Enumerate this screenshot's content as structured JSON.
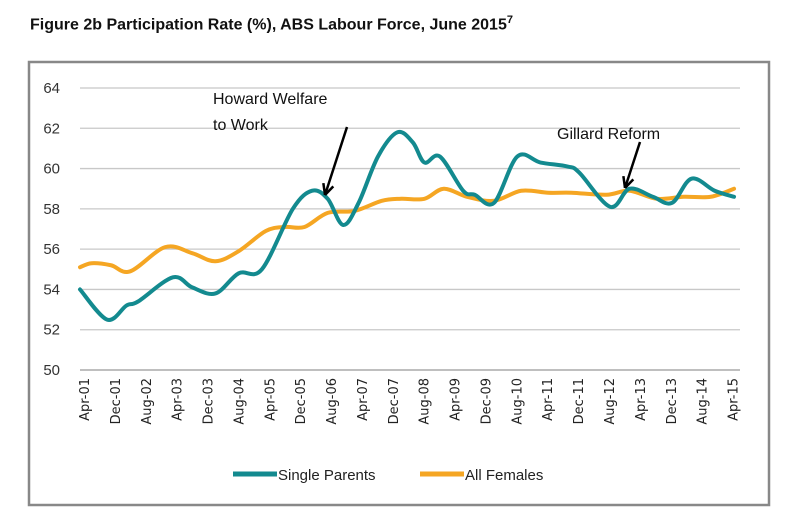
{
  "chart_data": {
    "type": "line",
    "title": "Figure 2b Participation Rate (%), ABS Labour Force, June 2015",
    "title_footnote": "7",
    "xlabel": "",
    "ylabel": "",
    "ylim": [
      50,
      64
    ],
    "yticks": [
      50,
      52,
      54,
      56,
      58,
      60,
      62,
      64
    ],
    "xticks": [
      "Apr-01",
      "Dec-01",
      "Aug-02",
      "Apr-03",
      "Dec-03",
      "Aug-04",
      "Apr-05",
      "Dec-05",
      "Aug-06",
      "Apr-07",
      "Dec-07",
      "Aug-08",
      "Apr-09",
      "Dec-09",
      "Aug-10",
      "Apr-11",
      "Dec-11",
      "Aug-12",
      "Apr-13",
      "Dec-13",
      "Aug-14",
      "Apr-15"
    ],
    "grid": true,
    "legend_placement": "bottom",
    "series": [
      {
        "name": "Single Parents",
        "color": "#138a8f",
        "points": [
          [
            "2001-04",
            54.0
          ],
          [
            "2001-11",
            52.5
          ],
          [
            "2002-04",
            53.2
          ],
          [
            "2002-07",
            53.4
          ],
          [
            "2003-04",
            54.6
          ],
          [
            "2003-09",
            54.1
          ],
          [
            "2004-03",
            53.8
          ],
          [
            "2004-09",
            54.8
          ],
          [
            "2005-03",
            55.0
          ],
          [
            "2005-11",
            58.0
          ],
          [
            "2006-04",
            58.9
          ],
          [
            "2006-08",
            58.5
          ],
          [
            "2006-12",
            57.2
          ],
          [
            "2007-04",
            58.3
          ],
          [
            "2007-09",
            60.6
          ],
          [
            "2008-02",
            61.8
          ],
          [
            "2008-06",
            61.3
          ],
          [
            "2008-09",
            60.3
          ],
          [
            "2009-01",
            60.6
          ],
          [
            "2009-07",
            58.9
          ],
          [
            "2009-10",
            58.7
          ],
          [
            "2010-03",
            58.3
          ],
          [
            "2010-09",
            60.6
          ],
          [
            "2011-03",
            60.3
          ],
          [
            "2011-10",
            60.1
          ],
          [
            "2012-01",
            59.8
          ],
          [
            "2012-09",
            58.1
          ],
          [
            "2013-02",
            59.0
          ],
          [
            "2013-08",
            58.6
          ],
          [
            "2014-01",
            58.3
          ],
          [
            "2014-06",
            59.5
          ],
          [
            "2014-12",
            58.9
          ],
          [
            "2015-05",
            58.6
          ]
        ]
      },
      {
        "name": "All Females",
        "color": "#f5a623",
        "points": [
          [
            "2001-04",
            55.1
          ],
          [
            "2001-07",
            55.3
          ],
          [
            "2001-12",
            55.2
          ],
          [
            "2002-05",
            54.9
          ],
          [
            "2003-02",
            56.1
          ],
          [
            "2003-09",
            55.8
          ],
          [
            "2004-03",
            55.4
          ],
          [
            "2004-09",
            55.9
          ],
          [
            "2005-04",
            56.9
          ],
          [
            "2005-09",
            57.1
          ],
          [
            "2006-02",
            57.1
          ],
          [
            "2006-08",
            57.8
          ],
          [
            "2007-03",
            57.9
          ],
          [
            "2007-10",
            58.4
          ],
          [
            "2008-03",
            58.5
          ],
          [
            "2008-09",
            58.5
          ],
          [
            "2009-02",
            59.0
          ],
          [
            "2009-08",
            58.6
          ],
          [
            "2010-03",
            58.4
          ],
          [
            "2010-10",
            58.9
          ],
          [
            "2011-05",
            58.8
          ],
          [
            "2011-11",
            58.8
          ],
          [
            "2012-08",
            58.7
          ],
          [
            "2013-02",
            58.9
          ],
          [
            "2013-09",
            58.5
          ],
          [
            "2014-04",
            58.6
          ],
          [
            "2014-11",
            58.6
          ],
          [
            "2015-05",
            59.0
          ]
        ]
      }
    ],
    "annotations": [
      {
        "lines": [
          "Howard Welfare",
          "to Work"
        ],
        "points_to": [
          "2006-07",
          58.3
        ]
      },
      {
        "lines": [
          "Gillard Reform"
        ],
        "points_to": [
          "2013-02",
          59.0
        ]
      }
    ]
  }
}
